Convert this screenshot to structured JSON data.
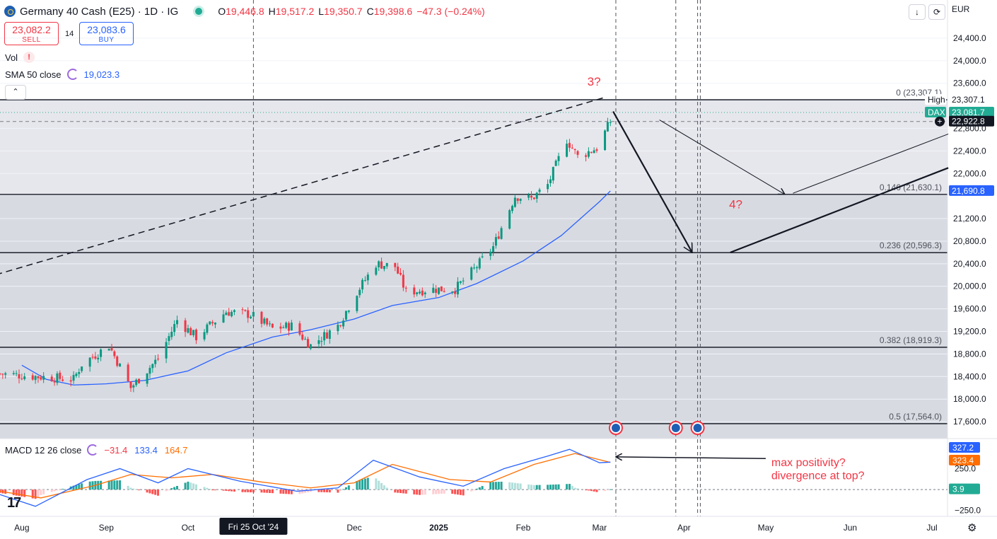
{
  "header": {
    "symbol_title": "Germany 40 Cash (E25) · 1D · IG",
    "ohlc": [
      {
        "label": "O",
        "value": "19,446.8"
      },
      {
        "label": "H",
        "value": "19,517.2"
      },
      {
        "label": "L",
        "value": "19,350.7"
      },
      {
        "label": "C",
        "value": "19,398.6"
      },
      {
        "label": "",
        "value": "−47.3 (−0.24%)"
      }
    ],
    "currency": "EUR"
  },
  "trade": {
    "sell_price": "23,082.2",
    "sell_label": "SELL",
    "spread": "14",
    "buy_price": "23,083.6",
    "buy_label": "BUY"
  },
  "legend": {
    "vol": "Vol",
    "sma_label": "SMA 50 close",
    "sma_value": "19,023.3",
    "macd_label": "MACD 12 26 close",
    "macd_values": [
      {
        "value": "−31.4",
        "color": "#f23645"
      },
      {
        "value": "133.4",
        "color": "#2962ff"
      },
      {
        "value": "164.7",
        "color": "#ff6d00"
      }
    ]
  },
  "colors": {
    "up": "#089981",
    "down": "#f23645",
    "sma": "#2962ff",
    "macd": "#2962ff",
    "signal": "#ff6d00",
    "fib_fill": "#d1d4dc",
    "annotation": "#f23645"
  },
  "chart_data": {
    "type": "candlestick",
    "symbol": "Germany 40 Cash (E25)",
    "interval": "1D",
    "ylim": [
      17300,
      24700
    ],
    "y_ticks": [
      "24,400.0",
      "24,000.0",
      "23,600.0",
      "22,800.0",
      "22,400.0",
      "22,000.0",
      "21,200.0",
      "20,800.0",
      "20,400.0",
      "20,000.0",
      "19,600.0",
      "19,200.0",
      "18,800.0",
      "18,400.0",
      "18,000.0",
      "17,600.0"
    ],
    "x_ticks": [
      {
        "date": "2024-08-01",
        "label": "Aug"
      },
      {
        "date": "2024-09-01",
        "label": "Sep"
      },
      {
        "date": "2024-10-01",
        "label": "Oct"
      },
      {
        "date": "2024-12-01",
        "label": "Dec"
      },
      {
        "date": "2025-01-01",
        "label": "2025"
      },
      {
        "date": "2025-02-01",
        "label": "Feb"
      },
      {
        "date": "2025-03-01",
        "label": "Mar"
      },
      {
        "date": "2025-04-01",
        "label": "Apr"
      },
      {
        "date": "2025-05-01",
        "label": "May"
      },
      {
        "date": "2025-06-01",
        "label": "Jun"
      },
      {
        "date": "2025-07-01",
        "label": "Jul"
      }
    ],
    "crosshair": {
      "date": "2024-10-25",
      "label": "Fri 25 Oct '24"
    },
    "price_labels": [
      {
        "text": "High",
        "value": 23307.1,
        "bg": "#ffffff",
        "fg": "#131722"
      },
      {
        "text": "23,307.1",
        "value": 23307.1,
        "bg": "#ffffff",
        "fg": "#131722"
      },
      {
        "text": "DAX",
        "value": 23081.7,
        "bg": "#22ab94",
        "fg": "#ffffff"
      },
      {
        "text": "23,081.7",
        "value": 23081.7,
        "bg": "#22ab94",
        "fg": "#ffffff"
      },
      {
        "text": "22,922.8",
        "value": 22922.8,
        "bg": "#131722",
        "fg": "#ffffff"
      },
      {
        "text": "21,690.8",
        "value": 21690.8,
        "bg": "#2962ff",
        "fg": "#ffffff"
      }
    ],
    "fib_levels": [
      {
        "ratio": 0,
        "price": 23307.1,
        "label": "0 (23,307.1)"
      },
      {
        "ratio": 0.146,
        "price": 21630.1,
        "label": "0.146 (21,630.1)"
      },
      {
        "ratio": 0.236,
        "price": 20596.3,
        "label": "0.236 (20,596.3)"
      },
      {
        "ratio": 0.382,
        "price": 18919.3,
        "label": "0.382 (18,919.3)"
      },
      {
        "ratio": 0.5,
        "price": 17564.0,
        "label": "0.5 (17,564.0)"
      }
    ],
    "candles_anchor": {
      "date": "2024-07-24",
      "price": 18450
    },
    "candles_end": {
      "date": "2025-03-05",
      "price": 22922.8
    },
    "candles": [
      {
        "date": "2024-08-20",
        "price": 18350
      },
      {
        "date": "2024-08-23",
        "price": 18620
      },
      {
        "date": "2024-09-02",
        "price": 18950
      },
      {
        "date": "2024-09-10",
        "price": 18200
      },
      {
        "date": "2024-09-20",
        "price": 18720
      },
      {
        "date": "2024-09-27",
        "price": 19400
      },
      {
        "date": "2024-10-04",
        "price": 19100
      },
      {
        "date": "2024-10-15",
        "price": 19550
      },
      {
        "date": "2024-10-24",
        "price": 19500
      },
      {
        "date": "2024-11-01",
        "price": 19250
      },
      {
        "date": "2024-11-08",
        "price": 19300
      },
      {
        "date": "2024-11-15",
        "price": 18950
      },
      {
        "date": "2024-11-25",
        "price": 19300
      },
      {
        "date": "2024-12-02",
        "price": 19900
      },
      {
        "date": "2024-12-09",
        "price": 20400
      },
      {
        "date": "2024-12-16",
        "price": 20350
      },
      {
        "date": "2024-12-20",
        "price": 19900
      },
      {
        "date": "2024-12-30",
        "price": 19950
      },
      {
        "date": "2025-01-07",
        "price": 19950
      },
      {
        "date": "2025-01-14",
        "price": 20300
      },
      {
        "date": "2025-01-21",
        "price": 20700
      },
      {
        "date": "2025-01-29",
        "price": 21600
      },
      {
        "date": "2025-02-04",
        "price": 21550
      },
      {
        "date": "2025-02-10",
        "price": 21800
      },
      {
        "date": "2025-02-17",
        "price": 22600
      },
      {
        "date": "2025-02-21",
        "price": 22300
      },
      {
        "date": "2025-02-28",
        "price": 22450
      }
    ],
    "sma50": [
      {
        "date": "2024-08-01",
        "price": 18600
      },
      {
        "date": "2024-08-10",
        "price": 18350
      },
      {
        "date": "2024-08-20",
        "price": 18250
      },
      {
        "date": "2024-09-01",
        "price": 18270
      },
      {
        "date": "2024-09-15",
        "price": 18330
      },
      {
        "date": "2024-10-01",
        "price": 18500
      },
      {
        "date": "2024-10-15",
        "price": 18820
      },
      {
        "date": "2024-11-01",
        "price": 19100
      },
      {
        "date": "2024-11-15",
        "price": 19230
      },
      {
        "date": "2024-12-01",
        "price": 19420
      },
      {
        "date": "2024-12-15",
        "price": 19660
      },
      {
        "date": "2025-01-01",
        "price": 19800
      },
      {
        "date": "2025-01-15",
        "price": 20050
      },
      {
        "date": "2025-02-01",
        "price": 20450
      },
      {
        "date": "2025-02-15",
        "price": 20900
      },
      {
        "date": "2025-03-01",
        "price": 21500
      },
      {
        "date": "2025-03-05",
        "price": 21690.8
      }
    ],
    "macd_pane": {
      "y_ticks": [
        {
          "value": 500,
          "label": "500.0"
        },
        {
          "value": 250,
          "label": "250.0"
        },
        {
          "value": -250,
          "label": "−250.0"
        }
      ],
      "ylim": [
        -320,
        600
      ],
      "price_labels": [
        {
          "text": "327.2",
          "value": 327.2,
          "bg": "#2962ff",
          "fg": "#ffffff"
        },
        {
          "text": "323.4",
          "value": 323.4,
          "bg": "#ff6d00",
          "fg": "#ffffff"
        },
        {
          "text": "3.9",
          "value": 3.9,
          "bg": "#22ab94",
          "fg": "#ffffff"
        }
      ],
      "macd": [
        {
          "date": "2024-07-24",
          "value": -60
        },
        {
          "date": "2024-08-06",
          "value": -200
        },
        {
          "date": "2024-08-25",
          "value": 120
        },
        {
          "date": "2024-09-06",
          "value": 250
        },
        {
          "date": "2024-09-20",
          "value": 80
        },
        {
          "date": "2024-10-01",
          "value": 250
        },
        {
          "date": "2024-10-20",
          "value": 100
        },
        {
          "date": "2024-11-10",
          "value": -20
        },
        {
          "date": "2024-11-25",
          "value": 20
        },
        {
          "date": "2024-12-08",
          "value": 350
        },
        {
          "date": "2024-12-25",
          "value": 150
        },
        {
          "date": "2025-01-10",
          "value": 40
        },
        {
          "date": "2025-01-25",
          "value": 250
        },
        {
          "date": "2025-02-10",
          "value": 400
        },
        {
          "date": "2025-02-18",
          "value": 480
        },
        {
          "date": "2025-03-01",
          "value": 320
        },
        {
          "date": "2025-03-05",
          "value": 327.2
        }
      ],
      "signal": [
        {
          "date": "2024-07-24",
          "value": -20
        },
        {
          "date": "2024-08-08",
          "value": -100
        },
        {
          "date": "2024-08-28",
          "value": 50
        },
        {
          "date": "2024-09-10",
          "value": 180
        },
        {
          "date": "2024-09-25",
          "value": 140
        },
        {
          "date": "2024-10-10",
          "value": 180
        },
        {
          "date": "2024-10-28",
          "value": 90
        },
        {
          "date": "2024-11-15",
          "value": 20
        },
        {
          "date": "2024-12-01",
          "value": 80
        },
        {
          "date": "2024-12-15",
          "value": 300
        },
        {
          "date": "2025-01-05",
          "value": 120
        },
        {
          "date": "2025-01-20",
          "value": 90
        },
        {
          "date": "2025-02-05",
          "value": 300
        },
        {
          "date": "2025-02-20",
          "value": 430
        },
        {
          "date": "2025-03-05",
          "value": 323.4
        }
      ]
    },
    "drawings": {
      "trendline": {
        "start": {
          "date": "2024-07-15",
          "price": 20100
        },
        "end": {
          "date": "2025-03-03",
          "price": 23350
        }
      },
      "arrow_main": {
        "start": {
          "date": "2025-03-06",
          "price": 23100
        },
        "end": {
          "date": "2025-04-04",
          "price": 20600
        }
      },
      "arrow_thin": {
        "start": {
          "date": "2025-03-23",
          "price": 22950
        },
        "end": {
          "date": "2025-05-08",
          "price": 21630
        }
      },
      "line_thin": {
        "start": {
          "date": "2025-05-11",
          "price": 21650
        },
        "end": {
          "date": "2025-07-07",
          "price": 22700
        }
      },
      "line_thick": {
        "start": {
          "date": "2025-04-18",
          "price": 20600
        },
        "end": {
          "date": "2025-07-07",
          "price": 22100
        }
      },
      "vertical_dashed": [
        "2024-10-25",
        "2025-03-07",
        "2025-03-29",
        "2025-04-06",
        "2025-04-07"
      ],
      "event_icons": [
        "2025-03-07",
        "2025-03-29",
        "2025-04-06"
      ],
      "macd_arrow": {
        "start": {
          "date": "2025-05-01",
          "value": 370
        },
        "end": {
          "date": "2025-03-07",
          "value": 390
        }
      }
    },
    "annotations": [
      {
        "text": "3?",
        "date": "2025-02-27",
        "price": 23560
      },
      {
        "text": "4?",
        "date": "2025-04-20",
        "price": 21380
      }
    ],
    "macd_annotations": [
      {
        "text": "max positivity?",
        "date": "2025-05-01",
        "value": 330
      },
      {
        "text": "divergence at top?",
        "date": "2025-05-01",
        "value": 175
      }
    ]
  }
}
